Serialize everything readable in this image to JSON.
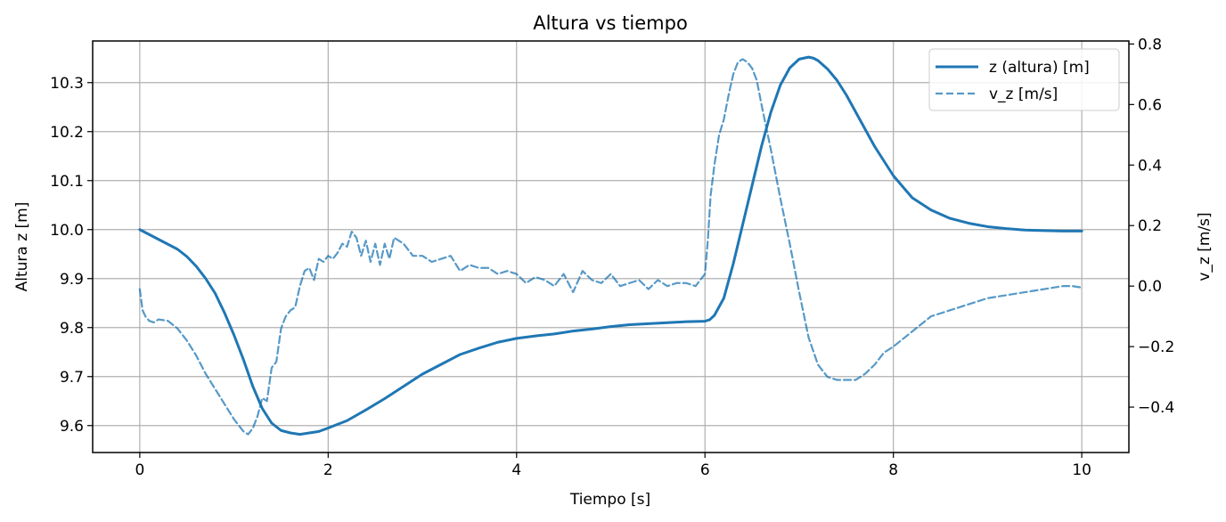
{
  "chart_data": {
    "type": "line",
    "title": "Altura vs tiempo",
    "xlabel": "Tiempo [s]",
    "ylabel_left": "Altura z [m]",
    "ylabel_right": "v_z [m/s]",
    "xlim": [
      -0.5,
      10.5
    ],
    "ylim_left": [
      9.545,
      10.385
    ],
    "ylim_right": [
      -0.55,
      0.81
    ],
    "xticks": [
      "0",
      "2",
      "4",
      "6",
      "8",
      "10"
    ],
    "yticks_left": [
      "9.6",
      "9.7",
      "9.8",
      "9.9",
      "10.0",
      "10.1",
      "10.2",
      "10.3"
    ],
    "yticks_right": [
      "−0.4",
      "−0.2",
      "0.0",
      "0.2",
      "0.4",
      "0.6",
      "0.8"
    ],
    "grid": true,
    "legend_position": "top-right",
    "series": [
      {
        "name": "z (altura) [m]",
        "axis": "left",
        "style": "solid",
        "color": "#1f77b4",
        "x": [
          0,
          0.1,
          0.2,
          0.3,
          0.4,
          0.5,
          0.6,
          0.7,
          0.8,
          0.9,
          1.0,
          1.1,
          1.2,
          1.3,
          1.4,
          1.5,
          1.6,
          1.7,
          1.8,
          1.9,
          2.0,
          2.2,
          2.4,
          2.6,
          2.8,
          3.0,
          3.2,
          3.4,
          3.6,
          3.8,
          4.0,
          4.2,
          4.4,
          4.6,
          4.8,
          5.0,
          5.2,
          5.4,
          5.6,
          5.8,
          6.0,
          6.05,
          6.1,
          6.2,
          6.3,
          6.4,
          6.5,
          6.6,
          6.7,
          6.8,
          6.9,
          7.0,
          7.1,
          7.15,
          7.2,
          7.3,
          7.4,
          7.5,
          7.6,
          7.7,
          7.8,
          7.9,
          8.0,
          8.2,
          8.4,
          8.6,
          8.8,
          9.0,
          9.2,
          9.4,
          9.6,
          9.8,
          10.0
        ],
        "values": [
          10.0,
          9.99,
          9.98,
          9.97,
          9.96,
          9.945,
          9.925,
          9.9,
          9.87,
          9.83,
          9.785,
          9.735,
          9.68,
          9.635,
          9.605,
          9.59,
          9.585,
          9.582,
          9.585,
          9.588,
          9.595,
          9.61,
          9.632,
          9.655,
          9.68,
          9.705,
          9.725,
          9.745,
          9.758,
          9.77,
          9.778,
          9.783,
          9.787,
          9.793,
          9.797,
          9.802,
          9.806,
          9.808,
          9.81,
          9.812,
          9.813,
          9.816,
          9.825,
          9.86,
          9.93,
          10.01,
          10.09,
          10.17,
          10.24,
          10.295,
          10.33,
          10.348,
          10.352,
          10.35,
          10.345,
          10.328,
          10.305,
          10.275,
          10.24,
          10.205,
          10.17,
          10.14,
          10.11,
          10.065,
          10.04,
          10.023,
          10.013,
          10.006,
          10.002,
          9.999,
          9.998,
          9.997,
          9.997
        ]
      },
      {
        "name": "v_z [m/s]",
        "axis": "right",
        "style": "dashed",
        "color": "#1f77b4",
        "x": [
          0,
          0.03,
          0.06,
          0.1,
          0.15,
          0.2,
          0.3,
          0.4,
          0.5,
          0.6,
          0.7,
          0.8,
          0.9,
          1.0,
          1.1,
          1.15,
          1.2,
          1.25,
          1.3,
          1.35,
          1.4,
          1.45,
          1.5,
          1.55,
          1.6,
          1.65,
          1.7,
          1.75,
          1.8,
          1.85,
          1.9,
          1.95,
          2.0,
          2.05,
          2.1,
          2.15,
          2.2,
          2.25,
          2.3,
          2.35,
          2.4,
          2.45,
          2.5,
          2.55,
          2.6,
          2.65,
          2.7,
          2.75,
          2.8,
          2.9,
          3.0,
          3.1,
          3.2,
          3.3,
          3.4,
          3.5,
          3.6,
          3.7,
          3.8,
          3.9,
          4.0,
          4.1,
          4.2,
          4.3,
          4.4,
          4.5,
          4.6,
          4.7,
          4.8,
          4.9,
          5.0,
          5.1,
          5.2,
          5.3,
          5.4,
          5.5,
          5.6,
          5.7,
          5.8,
          5.9,
          6.0,
          6.03,
          6.06,
          6.1,
          6.15,
          6.2,
          6.25,
          6.3,
          6.35,
          6.4,
          6.45,
          6.5,
          6.55,
          6.6,
          6.7,
          6.8,
          6.9,
          7.0,
          7.1,
          7.2,
          7.3,
          7.4,
          7.5,
          7.6,
          7.65,
          7.7,
          7.8,
          7.9,
          8.0,
          8.2,
          8.4,
          8.6,
          8.8,
          9.0,
          9.2,
          9.4,
          9.6,
          9.8,
          9.9,
          10.0
        ],
        "values": [
          -0.01,
          -0.08,
          -0.1,
          -0.115,
          -0.12,
          -0.11,
          -0.115,
          -0.14,
          -0.18,
          -0.23,
          -0.29,
          -0.34,
          -0.39,
          -0.44,
          -0.48,
          -0.49,
          -0.47,
          -0.43,
          -0.37,
          -0.38,
          -0.27,
          -0.25,
          -0.14,
          -0.1,
          -0.08,
          -0.07,
          0.0,
          0.05,
          0.06,
          0.02,
          0.09,
          0.08,
          0.1,
          0.09,
          0.11,
          0.14,
          0.13,
          0.18,
          0.16,
          0.1,
          0.15,
          0.08,
          0.14,
          0.07,
          0.14,
          0.09,
          0.16,
          0.15,
          0.14,
          0.1,
          0.1,
          0.08,
          0.09,
          0.1,
          0.05,
          0.07,
          0.06,
          0.06,
          0.04,
          0.05,
          0.04,
          0.01,
          0.03,
          0.02,
          0.0,
          0.04,
          -0.02,
          0.05,
          0.02,
          0.01,
          0.04,
          0.0,
          0.01,
          0.02,
          -0.01,
          0.02,
          0.0,
          0.01,
          0.01,
          0.0,
          0.04,
          0.15,
          0.3,
          0.4,
          0.5,
          0.55,
          0.63,
          0.7,
          0.74,
          0.75,
          0.74,
          0.72,
          0.68,
          0.6,
          0.45,
          0.29,
          0.14,
          -0.02,
          -0.17,
          -0.26,
          -0.3,
          -0.31,
          -0.31,
          -0.31,
          -0.3,
          -0.29,
          -0.26,
          -0.22,
          -0.2,
          -0.15,
          -0.1,
          -0.08,
          -0.06,
          -0.04,
          -0.03,
          -0.02,
          -0.01,
          0.0,
          0.0,
          -0.005
        ]
      }
    ]
  }
}
